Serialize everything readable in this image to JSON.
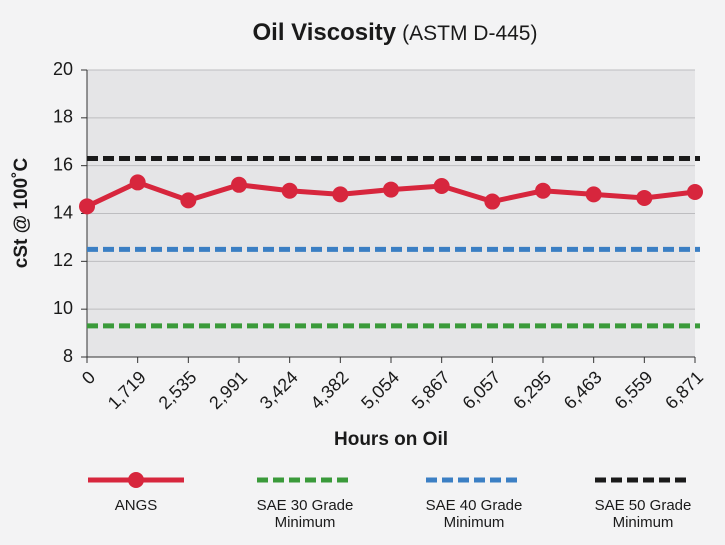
{
  "chart_data": {
    "type": "line",
    "title": "Oil Viscosity",
    "subtitle": "(ASTM D-445)",
    "x_label": "Hours on Oil",
    "y_label": "cSt @ 100˚C",
    "categories": [
      "0",
      "1,719",
      "2,535",
      "2,991",
      "3,424",
      "4,382",
      "5,054",
      "5,867",
      "6,057",
      "6,295",
      "6,463",
      "6,559",
      "6,871"
    ],
    "series": [
      {
        "name": "ANGS",
        "color": "#d7263d",
        "values": [
          14.3,
          15.3,
          14.55,
          15.2,
          14.95,
          14.8,
          15.0,
          15.15,
          14.5,
          14.95,
          14.8,
          14.65,
          14.9
        ]
      }
    ],
    "reference_lines": [
      {
        "name": "SAE 30 Grade Minimum",
        "color": "#3a9a3a",
        "value": 9.3
      },
      {
        "name": "SAE 40 Grade Minimum",
        "color": "#3b7fc4",
        "value": 12.5
      },
      {
        "name": "SAE 50 Grade Minimum",
        "color": "#1a1a1a",
        "value": 16.3
      }
    ],
    "ylim": [
      8,
      20
    ],
    "yticks": [
      8,
      10,
      12,
      14,
      16,
      18,
      20
    ],
    "grid": true
  }
}
